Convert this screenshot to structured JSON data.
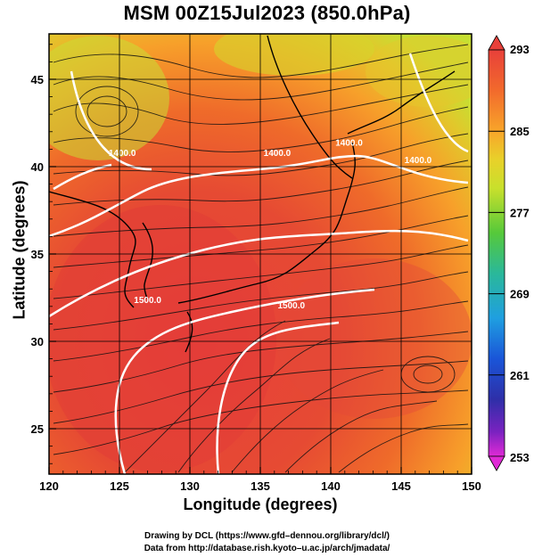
{
  "title": "MSM 00Z15Jul2023 (850.0hPa)",
  "xlabel": "Longitude (degrees)",
  "ylabel": "Latitude  (degrees)",
  "credit_line1": "Drawing by DCL (https://www.gfd–dennou.org/library/dcl/)",
  "credit_line2": "Data from http://database.rish.kyoto–u.ac.jp/arch/jmadata/",
  "map": {
    "lon_range": [
      120,
      150
    ],
    "lat_range": [
      22.4,
      47.6
    ],
    "x_ticks": [
      "120",
      "125",
      "130",
      "135",
      "140",
      "145",
      "150"
    ],
    "x_tick_values": [
      120,
      125,
      130,
      135,
      140,
      145,
      150
    ],
    "y_ticks": [
      "25",
      "30",
      "35",
      "40",
      "45"
    ],
    "y_tick_values": [
      25,
      30,
      35,
      40,
      45
    ],
    "grid": true,
    "contour_labels": [
      {
        "text": "1400.0",
        "lon": 125.2,
        "lat": 40.6
      },
      {
        "text": "1400.0",
        "lon": 136.2,
        "lat": 40.6
      },
      {
        "text": "1400.0",
        "lon": 141.3,
        "lat": 41.2
      },
      {
        "text": "1400.0",
        "lon": 146.2,
        "lat": 40.2
      },
      {
        "text": "1500.0",
        "lon": 127.0,
        "lat": 32.2
      },
      {
        "text": "1500.0",
        "lon": 137.2,
        "lat": 31.9
      }
    ]
  },
  "colorbar": {
    "labels": [
      "293",
      "285",
      "277",
      "269",
      "261",
      "253"
    ],
    "values": [
      293,
      285,
      277,
      269,
      261,
      253
    ],
    "colors": [
      "#e8403a",
      "#f26a2c",
      "#f8a52a",
      "#e8d12a",
      "#c9e02c",
      "#56c93a",
      "#2ab89a",
      "#1f9fe0",
      "#1a55d8",
      "#2e2fa8",
      "#7a22c0",
      "#e02ad6"
    ]
  }
}
